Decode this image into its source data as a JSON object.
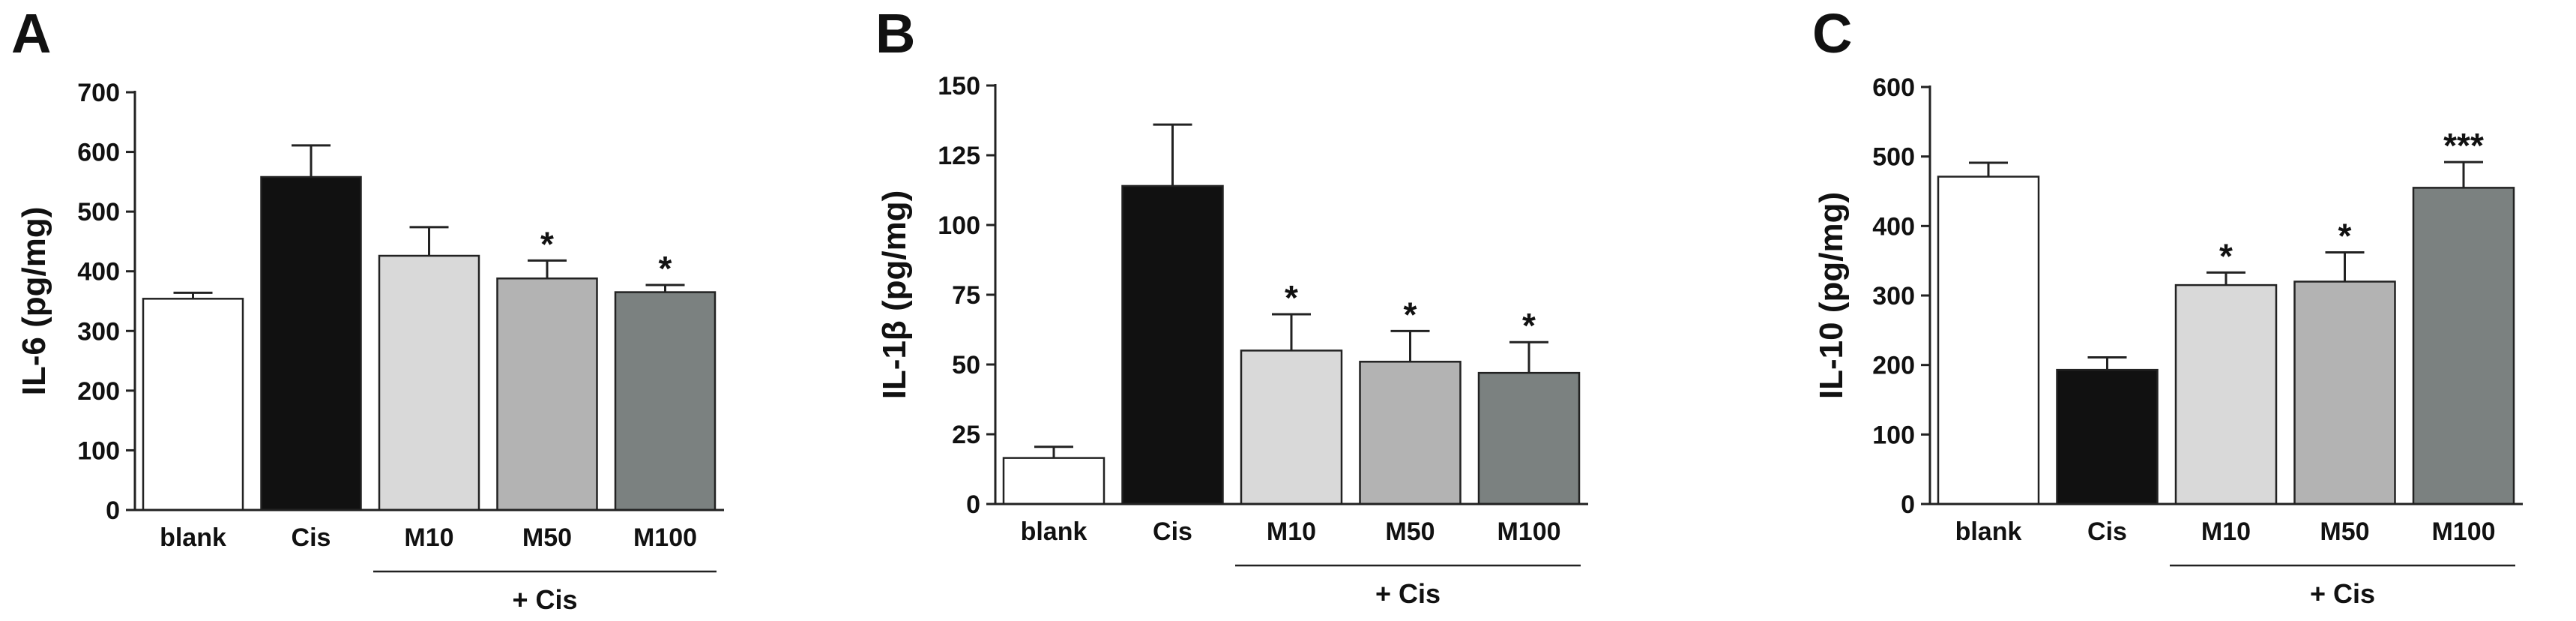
{
  "chart_data": [
    {
      "type": "bar",
      "panel": "A",
      "ylabel": "IL-6 (pg/mg)",
      "xlabel": "",
      "ylim": [
        0,
        700
      ],
      "yticks": [
        0,
        100,
        200,
        300,
        400,
        500,
        600,
        700
      ],
      "categories": [
        "blank",
        "Cis",
        "M10",
        "M50",
        "M100"
      ],
      "values": [
        354,
        558,
        426,
        388,
        365
      ],
      "errors": [
        10,
        53,
        48,
        30,
        12
      ],
      "significance": [
        "",
        "",
        "",
        "*",
        "*"
      ],
      "group_label": "+ Cis",
      "colors": [
        "#ffffff",
        "#111111",
        "#d9d9d9",
        "#b3b3b3",
        "#7b8180"
      ]
    },
    {
      "type": "bar",
      "panel": "B",
      "ylabel": "IL-1β (pg/mg)",
      "xlabel": "",
      "ylim": [
        0,
        150
      ],
      "yticks": [
        0,
        25,
        50,
        75,
        100,
        125,
        150
      ],
      "categories": [
        "blank",
        "Cis",
        "M10",
        "M50",
        "M100"
      ],
      "values": [
        16.5,
        114,
        55,
        51,
        47
      ],
      "errors": [
        4,
        22,
        13,
        11,
        11
      ],
      "significance": [
        "",
        "",
        "*",
        "*",
        "*"
      ],
      "group_label": "+ Cis",
      "colors": [
        "#ffffff",
        "#111111",
        "#d9d9d9",
        "#b3b3b3",
        "#7b8180"
      ]
    },
    {
      "type": "bar",
      "panel": "C",
      "ylabel": "IL-10 (pg/mg)",
      "xlabel": "",
      "ylim": [
        0,
        600
      ],
      "yticks": [
        0,
        100,
        200,
        300,
        400,
        500,
        600
      ],
      "categories": [
        "blank",
        "Cis",
        "M10",
        "M50",
        "M100"
      ],
      "values": [
        471,
        193,
        315,
        320,
        455
      ],
      "errors": [
        20,
        18,
        18,
        42,
        37
      ],
      "significance": [
        "",
        "",
        "*",
        "*",
        "***"
      ],
      "group_label": "+ Cis",
      "colors": [
        "#ffffff",
        "#111111",
        "#d9d9d9",
        "#b3b3b3",
        "#7b8180"
      ]
    }
  ]
}
